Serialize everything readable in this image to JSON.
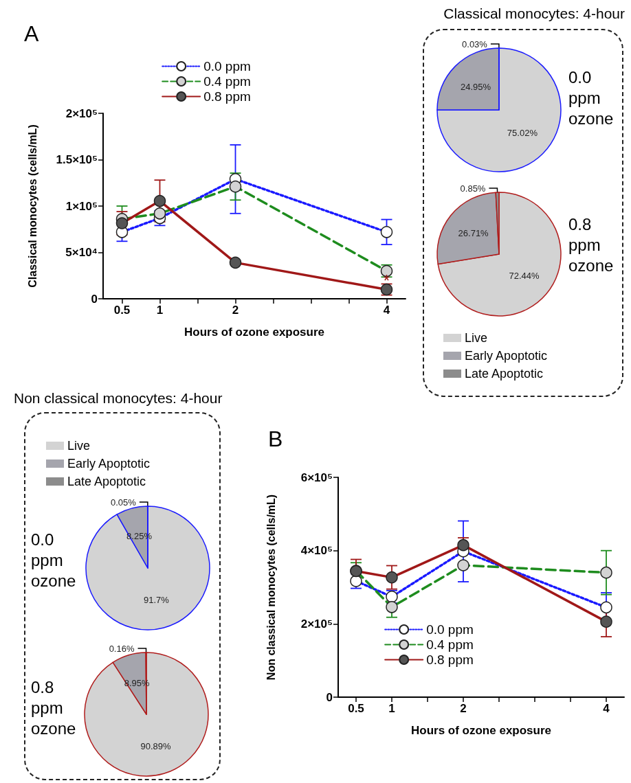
{
  "chart_data": [
    {
      "type": "line",
      "title": "A",
      "xlabel": "Hours of ozone exposure",
      "ylabel": "Classical monocytes (cells/mL)",
      "x": [
        0.5,
        1,
        2,
        4
      ],
      "xlim": [
        0.25,
        4.25
      ],
      "xticks": [
        0.5,
        1,
        {
          "value": 1.5,
          "label": null
        },
        2,
        {
          "value": 2.5,
          "label": null
        },
        {
          "value": 3,
          "label": null
        },
        {
          "value": 3.5,
          "label": null
        },
        4
      ],
      "ylim": [
        0,
        200000
      ],
      "yticks": [
        0,
        {
          "value": 50000,
          "label": "5×10⁴"
        },
        {
          "value": 100000,
          "label": "1×10⁵"
        },
        {
          "value": 150000,
          "label": "1.5×10⁵"
        },
        {
          "value": 200000,
          "label": "2×10⁵"
        }
      ],
      "marker": "circle",
      "legend": "top",
      "annotations": [
        {
          "text": "*",
          "x": 4,
          "y": 20000
        }
      ],
      "series": [
        {
          "name": "0.0 ppm",
          "color": "#1a1aff",
          "line_style": "dotted",
          "values": [
            72000,
            87000,
            129000,
            72000
          ],
          "errors": [
            10000,
            8000,
            37000,
            13500
          ]
        },
        {
          "name": "0.4 ppm",
          "color": "#1e8c1e",
          "line_style": "dashed",
          "values": [
            86000,
            92000,
            121000,
            30000
          ],
          "errors": [
            14000,
            null,
            14500,
            6500
          ]
        },
        {
          "name": "0.8 ppm",
          "color": "#a01818",
          "line_style": "solid",
          "values": [
            81500,
            105500,
            39000,
            10000
          ],
          "errors": [
            12500,
            22500,
            null,
            6000
          ]
        }
      ]
    },
    {
      "type": "pie",
      "title": "Classical monocytes: 4-hour",
      "subtitle": "0.0 ppm ozone",
      "categories": [
        null,
        null,
        null
      ],
      "values": [
        75.02,
        24.95,
        0.03
      ],
      "colors": [
        "#d3d3d3",
        "#a5a5ad",
        "#8c8c8c"
      ],
      "value_labels": [
        "75.02%",
        "24.95%",
        "0.03%"
      ]
    },
    {
      "type": "pie",
      "subtitle": "0.8 ppm ozone",
      "categories": [
        "Live",
        "Early Apoptotic",
        "Late Apoptotic"
      ],
      "values": [
        72.44,
        26.71,
        0.85
      ],
      "colors": [
        "#d3d3d3",
        "#a5a5ad",
        "#8c8c8c"
      ],
      "value_labels": [
        "72.44%",
        "26.71%",
        "0.85%"
      ],
      "legend": "bottom"
    },
    {
      "type": "pie",
      "title": "Non classical monocytes: 4-hour",
      "subtitle": "0.0 ppm ozone",
      "categories": [
        "Live",
        "Early Apoptotic",
        "Late Apoptotic"
      ],
      "values": [
        91.7,
        8.25,
        0.05
      ],
      "colors": [
        "#d3d3d3",
        "#a5a5ad",
        "#8c8c8c"
      ],
      "value_labels": [
        "91.7%",
        "8.25%",
        "0.05%"
      ],
      "legend": "top"
    },
    {
      "type": "pie",
      "subtitle": "0.8 ppm ozone",
      "categories": [
        null,
        null,
        null
      ],
      "values": [
        90.89,
        8.95,
        0.16
      ],
      "colors": [
        "#d3d3d3",
        "#a5a5ad",
        "#8c8c8c"
      ],
      "value_labels": [
        "90.89%",
        "8.95%",
        "0.16%"
      ]
    },
    {
      "type": "line",
      "title": "B",
      "xlabel": "Hours of ozone exposure",
      "ylabel": "Non classical monocytes (cells/mL)",
      "x": [
        0.5,
        1,
        2,
        4
      ],
      "xlim": [
        0.25,
        4.25
      ],
      "xticks": [
        0.5,
        1,
        {
          "value": 1.5,
          "label": null
        },
        2,
        {
          "value": 2.5,
          "label": null
        },
        {
          "value": 3,
          "label": null
        },
        {
          "value": 3.5,
          "label": null
        },
        4
      ],
      "ylim": [
        0,
        600000
      ],
      "yticks": [
        0,
        {
          "value": 200000,
          "label": "2×10⁵"
        },
        {
          "value": 400000,
          "label": "4×10⁵"
        },
        {
          "value": 600000,
          "label": "6×10⁵"
        }
      ],
      "marker": "circle",
      "legend": "bottom",
      "series": [
        {
          "name": "0.0 ppm",
          "color": "#1a1aff",
          "line_style": "dotted",
          "values": [
            317000,
            274000,
            398000,
            245000
          ],
          "errors": [
            20000,
            17000,
            83000,
            40000
          ]
        },
        {
          "name": "0.4 ppm",
          "color": "#1e8c1e",
          "line_style": "dashed",
          "values": [
            345000,
            246000,
            360000,
            340000
          ],
          "errors": [
            22000,
            28000,
            null,
            60000
          ]
        },
        {
          "name": "0.8 ppm",
          "color": "#a01818",
          "line_style": "solid",
          "values": [
            344000,
            327000,
            415000,
            206000
          ],
          "errors": [
            32000,
            32000,
            20000,
            41000
          ]
        }
      ]
    }
  ]
}
